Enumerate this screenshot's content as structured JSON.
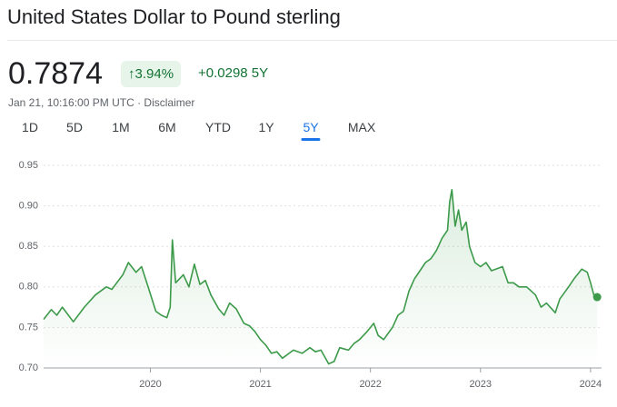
{
  "header": {
    "title": "United States Dollar to Pound sterling",
    "price": "0.7874",
    "badge": "↑3.94%",
    "change": "+0.0298 5Y",
    "subtitle": "Jan 21, 10:16:00 PM UTC · Disclaimer"
  },
  "tabs": [
    "1D",
    "5D",
    "1M",
    "6M",
    "YTD",
    "1Y",
    "5Y",
    "MAX"
  ],
  "selected_tab": 6,
  "chart_data": {
    "type": "line",
    "color": "#3c9a4a",
    "grid": true,
    "xlim": [
      2019.03,
      2024.1
    ],
    "xticks": [
      2020,
      2021,
      2022,
      2023,
      2024
    ],
    "ylim": [
      0.7,
      0.95
    ],
    "yticks": [
      {
        "value": 0.7,
        "label": "0.70"
      },
      0.75,
      {
        "value": 0.8,
        "label": "0.80"
      },
      0.85,
      {
        "value": 0.9,
        "label": "0.90"
      },
      0.95
    ],
    "series": [
      {
        "name": "USD/GBP",
        "x": [
          2019.03,
          2019.1,
          2019.15,
          2019.2,
          2019.3,
          2019.4,
          2019.5,
          2019.6,
          2019.65,
          2019.75,
          2019.8,
          2019.87,
          2019.92,
          2019.98,
          2020.05,
          2020.1,
          2020.15,
          2020.18,
          2020.2,
          2020.23,
          2020.3,
          2020.35,
          2020.4,
          2020.45,
          2020.5,
          2020.55,
          2020.62,
          2020.67,
          2020.72,
          2020.78,
          2020.85,
          2020.9,
          2020.95,
          2021.0,
          2021.05,
          2021.1,
          2021.15,
          2021.2,
          2021.3,
          2021.38,
          2021.45,
          2021.5,
          2021.55,
          2021.62,
          2021.67,
          2021.72,
          2021.8,
          2021.85,
          2021.9,
          2021.97,
          2022.03,
          2022.07,
          2022.12,
          2022.2,
          2022.25,
          2022.3,
          2022.35,
          2022.4,
          2022.45,
          2022.5,
          2022.55,
          2022.6,
          2022.65,
          2022.7,
          2022.72,
          2022.74,
          2022.77,
          2022.8,
          2022.83,
          2022.87,
          2022.9,
          2022.95,
          2023.0,
          2023.05,
          2023.1,
          2023.2,
          2023.25,
          2023.3,
          2023.35,
          2023.42,
          2023.5,
          2023.55,
          2023.6,
          2023.68,
          2023.72,
          2023.8,
          2023.85,
          2023.92,
          2023.97,
          2024.0,
          2024.03,
          2024.06
        ],
        "values": [
          0.76,
          0.772,
          0.765,
          0.775,
          0.757,
          0.775,
          0.79,
          0.8,
          0.797,
          0.815,
          0.83,
          0.818,
          0.825,
          0.8,
          0.77,
          0.765,
          0.762,
          0.775,
          0.858,
          0.805,
          0.815,
          0.8,
          0.828,
          0.803,
          0.808,
          0.79,
          0.773,
          0.765,
          0.78,
          0.773,
          0.755,
          0.752,
          0.745,
          0.735,
          0.728,
          0.718,
          0.72,
          0.712,
          0.722,
          0.718,
          0.725,
          0.72,
          0.722,
          0.705,
          0.708,
          0.725,
          0.722,
          0.73,
          0.735,
          0.745,
          0.755,
          0.74,
          0.735,
          0.75,
          0.765,
          0.77,
          0.795,
          0.81,
          0.82,
          0.83,
          0.835,
          0.845,
          0.86,
          0.87,
          0.905,
          0.92,
          0.875,
          0.895,
          0.87,
          0.88,
          0.85,
          0.83,
          0.825,
          0.83,
          0.82,
          0.825,
          0.805,
          0.805,
          0.8,
          0.8,
          0.79,
          0.775,
          0.78,
          0.768,
          0.785,
          0.8,
          0.81,
          0.822,
          0.818,
          0.805,
          0.79,
          0.7874
        ]
      }
    ]
  }
}
